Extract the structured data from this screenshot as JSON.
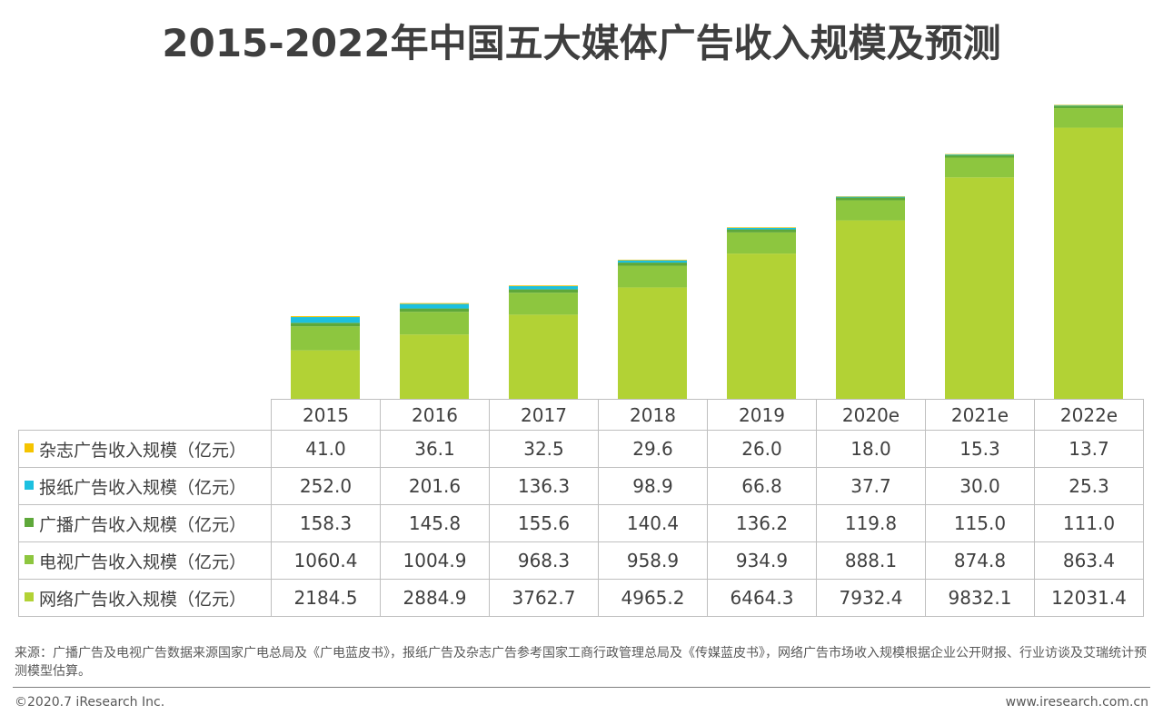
{
  "chart_data": {
    "type": "bar",
    "stacked": true,
    "title": "2015-2022年中国五大媒体广告收入规模及预测",
    "categories": [
      "2015",
      "2016",
      "2017",
      "2018",
      "2019",
      "2020e",
      "2021e",
      "2022e"
    ],
    "series": [
      {
        "name": "网络广告收入规模（亿元）",
        "color": "#b2d235",
        "values": [
          2184.5,
          2884.9,
          3762.7,
          4965.2,
          6464.3,
          7932.4,
          9832.1,
          12031.4
        ]
      },
      {
        "name": "电视广告收入规模（亿元）",
        "color": "#8dc63f",
        "values": [
          1060.4,
          1004.9,
          968.3,
          958.9,
          934.9,
          888.1,
          874.8,
          863.4
        ]
      },
      {
        "name": "广播广告收入规模（亿元）",
        "color": "#5ea83a",
        "values": [
          158.3,
          145.8,
          155.6,
          140.4,
          136.2,
          119.8,
          115.0,
          111.0
        ]
      },
      {
        "name": "报纸广告收入规模（亿元）",
        "color": "#1cc0e0",
        "values": [
          252.0,
          201.6,
          136.3,
          98.9,
          66.8,
          37.7,
          30.0,
          25.3
        ]
      },
      {
        "name": "杂志广告收入规模（亿元）",
        "color": "#f5c400",
        "values": [
          41.0,
          36.1,
          32.5,
          29.6,
          26.0,
          18.0,
          15.3,
          13.7
        ]
      }
    ],
    "ylim": [
      0,
      13500
    ],
    "grid": false,
    "legend": "data-table-below"
  },
  "table": {
    "rows": [
      {
        "label": "杂志广告收入规模（亿元）",
        "color": "#f5c400",
        "cells": [
          "41.0",
          "36.1",
          "32.5",
          "29.6",
          "26.0",
          "18.0",
          "15.3",
          "13.7"
        ]
      },
      {
        "label": "报纸广告收入规模（亿元）",
        "color": "#1cc0e0",
        "cells": [
          "252.0",
          "201.6",
          "136.3",
          "98.9",
          "66.8",
          "37.7",
          "30.0",
          "25.3"
        ]
      },
      {
        "label": "广播广告收入规模（亿元）",
        "color": "#5ea83a",
        "cells": [
          "158.3",
          "145.8",
          "155.6",
          "140.4",
          "136.2",
          "119.8",
          "115.0",
          "111.0"
        ]
      },
      {
        "label": "电视广告收入规模（亿元）",
        "color": "#8dc63f",
        "cells": [
          "1060.4",
          "1004.9",
          "968.3",
          "958.9",
          "934.9",
          "888.1",
          "874.8",
          "863.4"
        ]
      },
      {
        "label": "网络广告收入规模（亿元）",
        "color": "#b2d235",
        "cells": [
          "2184.5",
          "2884.9",
          "3762.7",
          "4965.2",
          "6464.3",
          "7932.4",
          "9832.1",
          "12031.4"
        ]
      }
    ]
  },
  "source_note": "来源：广播广告及电视广告数据来源国家广电总局及《广电蓝皮书》，报纸广告及杂志广告参考国家工商行政管理总局及《传媒蓝皮书》，网络广告市场收入规模根据企业公开财报、行业访谈及艾瑞统计预测模型估算。",
  "footer": {
    "copyright": "©2020.7 iResearch Inc.",
    "website": "www.iresearch.com.cn"
  }
}
